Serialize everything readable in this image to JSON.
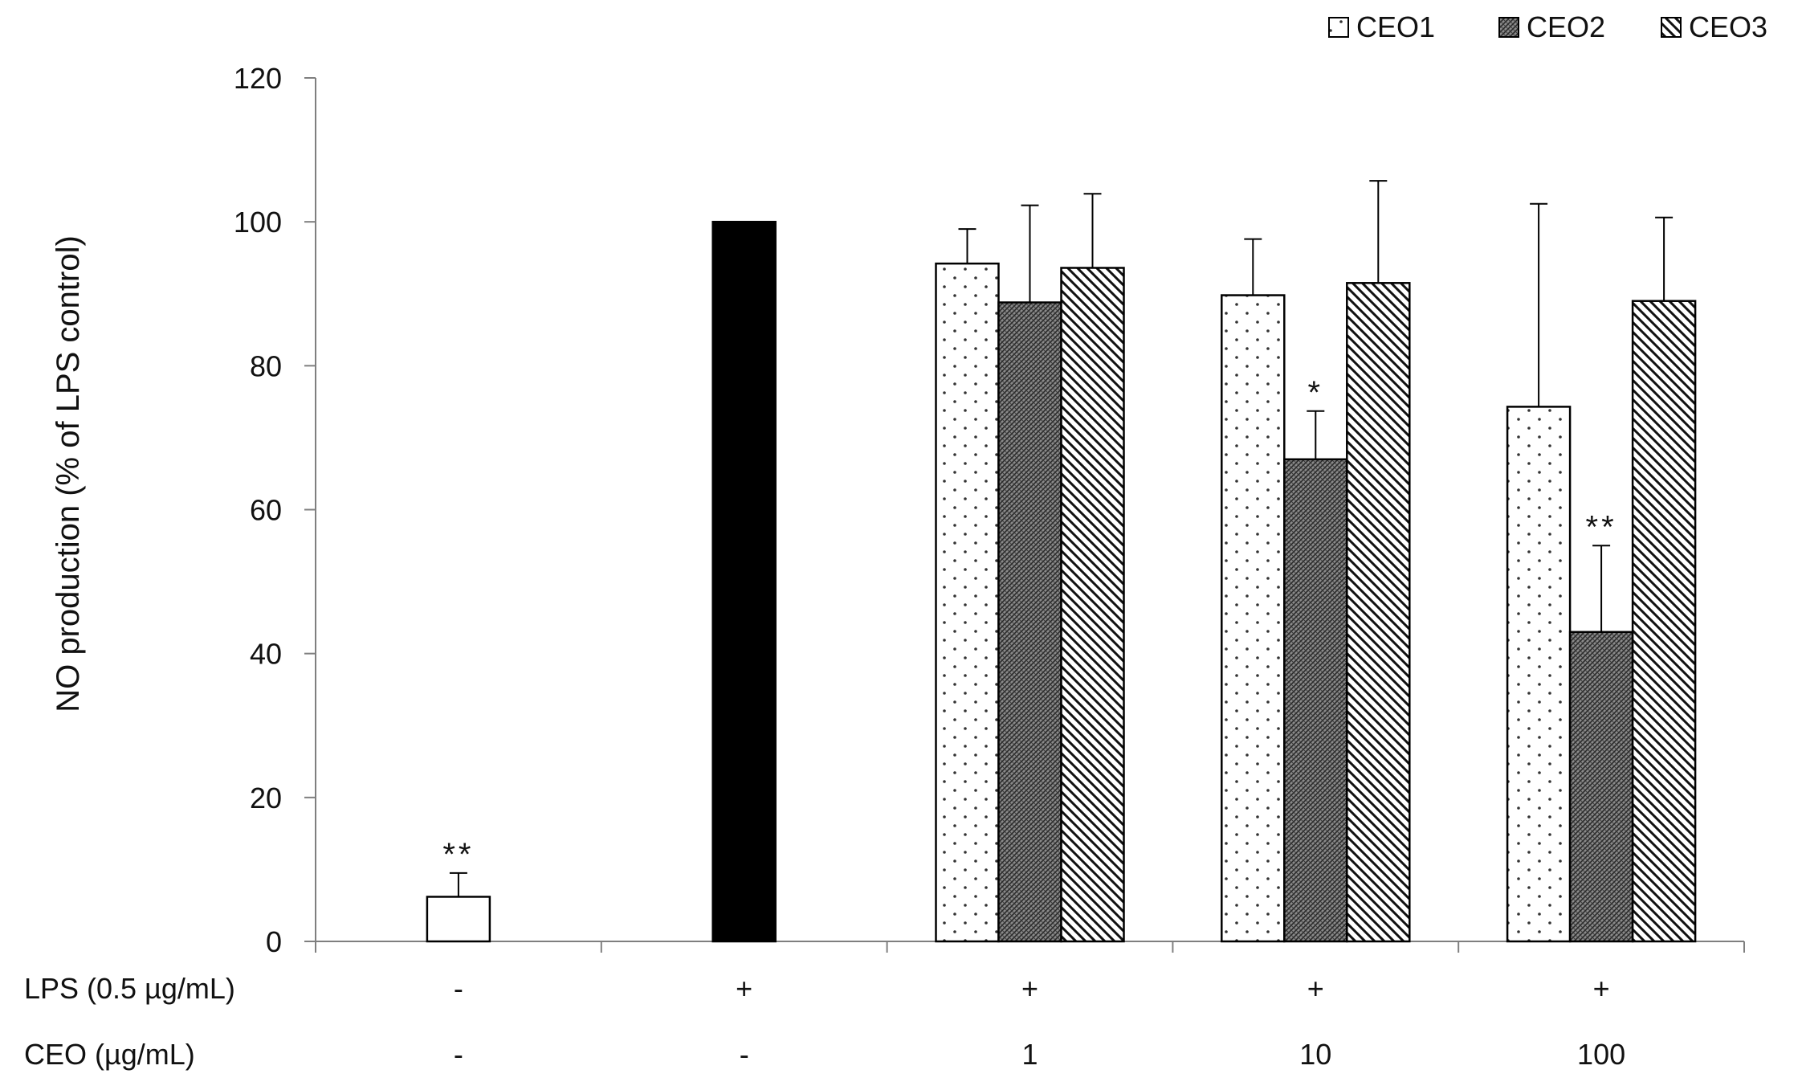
{
  "chart_data": {
    "type": "bar",
    "ylabel": "NO production (% of LPS control)",
    "ylim": [
      0,
      120
    ],
    "yticks": [
      0,
      20,
      40,
      60,
      80,
      100,
      120
    ],
    "grid": false,
    "legend": {
      "placement": "top-right",
      "entries": [
        "CEO1",
        "CEO2",
        "CEO3"
      ]
    },
    "row_labels": {
      "lps": "LPS (0.5 µg/mL)",
      "ceo": "CEO (µg/mL)"
    },
    "groups": [
      {
        "lps": "-",
        "ceo": "-"
      },
      {
        "lps": "+",
        "ceo": "-"
      },
      {
        "lps": "+",
        "ceo": "1"
      },
      {
        "lps": "+",
        "ceo": "10"
      },
      {
        "lps": "+",
        "ceo": "100"
      }
    ],
    "controls": [
      {
        "group": 0,
        "value": 6.2,
        "error": 3.3,
        "fill": "#ffffff",
        "significance": "**"
      },
      {
        "group": 1,
        "value": 100,
        "error": 0,
        "fill": "#000000",
        "significance": ""
      }
    ],
    "series": [
      {
        "name": "CEO1",
        "pattern": "dots",
        "values": [
          null,
          null,
          94.2,
          89.8,
          74.3
        ],
        "errors": [
          null,
          null,
          4.8,
          7.8,
          28.2
        ],
        "significance": [
          "",
          "",
          "",
          "",
          ""
        ]
      },
      {
        "name": "CEO2",
        "pattern": "crosshatch",
        "values": [
          null,
          null,
          88.8,
          67.0,
          43.0
        ],
        "errors": [
          null,
          null,
          13.5,
          6.7,
          12.0
        ],
        "significance": [
          "",
          "",
          "",
          "*",
          "**"
        ]
      },
      {
        "name": "CEO3",
        "pattern": "diagonal",
        "values": [
          null,
          null,
          93.6,
          91.5,
          89.0
        ],
        "errors": [
          null,
          null,
          10.3,
          14.2,
          11.6
        ],
        "significance": [
          "",
          "",
          "",
          "",
          ""
        ]
      }
    ]
  }
}
